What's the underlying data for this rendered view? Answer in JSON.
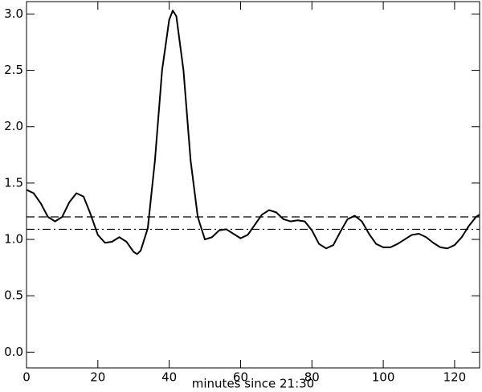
{
  "chart_data": {
    "type": "line",
    "x_label": "minutes since 21:30",
    "x": [
      0,
      2,
      4,
      6,
      8,
      10,
      12,
      14,
      16,
      18,
      20,
      22,
      24,
      26,
      28,
      30,
      31,
      32,
      34,
      36,
      38,
      40,
      41,
      42,
      44,
      46,
      48,
      50,
      52,
      54,
      56,
      58,
      60,
      62,
      64,
      66,
      68,
      70,
      72,
      74,
      76,
      78,
      80,
      82,
      84,
      86,
      88,
      90,
      92,
      94,
      96,
      98,
      100,
      102,
      104,
      106,
      108,
      110,
      112,
      114,
      116,
      118,
      120,
      122,
      124,
      126,
      127
    ],
    "series": [
      {
        "color": "#000000",
        "values": [
          1.44,
          1.41,
          1.32,
          1.2,
          1.16,
          1.2,
          1.33,
          1.41,
          1.38,
          1.22,
          1.04,
          0.97,
          0.98,
          1.02,
          0.98,
          0.89,
          0.87,
          0.9,
          1.1,
          1.7,
          2.5,
          2.95,
          3.03,
          2.98,
          2.5,
          1.7,
          1.2,
          1.0,
          1.02,
          1.08,
          1.09,
          1.05,
          1.01,
          1.04,
          1.13,
          1.22,
          1.26,
          1.24,
          1.18,
          1.16,
          1.17,
          1.16,
          1.08,
          0.96,
          0.92,
          0.95,
          1.07,
          1.18,
          1.21,
          1.16,
          1.05,
          0.96,
          0.93,
          0.93,
          0.96,
          1.0,
          1.04,
          1.05,
          1.02,
          0.97,
          0.93,
          0.92,
          0.95,
          1.02,
          1.12,
          1.2,
          1.22
        ]
      }
    ],
    "hlines": [
      {
        "value": 1.2,
        "style": "dashed"
      },
      {
        "value": 1.09,
        "style": "dashdot"
      }
    ],
    "xlim": [
      0,
      127
    ],
    "xticks": [
      0,
      20,
      40,
      60,
      80,
      100,
      120
    ],
    "ylim": [
      -0.14,
      3.11
    ],
    "yticks": [
      {
        "value": 0,
        "label": "0.0"
      },
      {
        "value": 0.5,
        "label": "0.5"
      },
      {
        "value": 1,
        "label": "1.0"
      },
      {
        "value": 1.5,
        "label": "1.5"
      },
      {
        "value": 2,
        "label": "2.0"
      },
      {
        "value": 2.5,
        "label": "2.5"
      },
      {
        "value": 3,
        "label": "3.0"
      }
    ]
  }
}
